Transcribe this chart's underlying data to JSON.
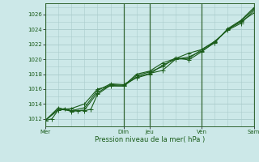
{
  "title": "",
  "xlabel": "Pression niveau de la mer( hPa )",
  "bg_color": "#cce8e8",
  "grid_color_minor": "#aacccc",
  "grid_color_major": "#88bbbb",
  "line_color": "#1a5c1a",
  "marker_color": "#1a5c1a",
  "ylim": [
    1011.0,
    1027.5
  ],
  "yticks": [
    1012,
    1014,
    1016,
    1018,
    1020,
    1022,
    1024,
    1026
  ],
  "x_day_labels": [
    "Mer",
    "",
    "Dim",
    "Jeu",
    "",
    "Ven",
    "",
    "Sam"
  ],
  "x_day_positions": [
    0,
    2,
    3,
    4,
    5,
    6,
    7,
    8
  ],
  "x_major_ticks": [
    0,
    3,
    4,
    6,
    8
  ],
  "x_major_labels": [
    "Mer",
    "Dim",
    "Jeu",
    "Ven",
    "Sam"
  ],
  "line1_x": [
    0,
    0.25,
    0.5,
    0.75,
    1.0,
    1.25,
    1.5,
    1.75,
    2.0,
    2.5,
    3.0,
    3.5,
    4.0,
    4.5,
    5.0,
    5.5,
    6.0,
    6.5,
    7.0,
    7.5,
    8.0
  ],
  "line1_y": [
    1011.8,
    1012.0,
    1013.2,
    1013.4,
    1013.1,
    1013.1,
    1013.1,
    1013.3,
    1015.3,
    1016.5,
    1016.4,
    1017.6,
    1018.1,
    1018.5,
    1020.0,
    1020.1,
    1021.3,
    1022.3,
    1024.0,
    1025.1,
    1026.7
  ],
  "line2_x": [
    0,
    0.5,
    1.0,
    1.5,
    2.0,
    2.5,
    3.0,
    3.5,
    4.0,
    4.5,
    5.0,
    5.5,
    6.0,
    6.5,
    7.0,
    7.5,
    8.0
  ],
  "line2_y": [
    1011.8,
    1013.5,
    1013.0,
    1013.2,
    1015.5,
    1016.6,
    1016.5,
    1017.8,
    1018.3,
    1019.0,
    1020.2,
    1019.9,
    1021.0,
    1022.3,
    1024.0,
    1025.0,
    1026.2
  ],
  "line3_x": [
    0,
    0.5,
    1.0,
    1.5,
    2.0,
    2.5,
    3.0,
    3.5,
    4.0,
    4.5,
    5.0,
    5.5,
    6.0,
    6.5,
    7.0,
    7.5,
    8.0
  ],
  "line3_y": [
    1011.8,
    1013.3,
    1013.1,
    1013.5,
    1015.8,
    1016.7,
    1016.6,
    1017.5,
    1018.0,
    1019.2,
    1020.0,
    1020.3,
    1021.1,
    1022.2,
    1024.1,
    1025.2,
    1026.9
  ],
  "line4_x": [
    0,
    0.5,
    1.0,
    1.5,
    2.0,
    2.5,
    3.0,
    3.5,
    4.0,
    4.5,
    5.0,
    5.5,
    6.0,
    6.5,
    7.0,
    7.5,
    8.0
  ],
  "line4_y": [
    1011.8,
    1013.2,
    1013.4,
    1014.0,
    1016.0,
    1016.4,
    1016.4,
    1018.0,
    1018.4,
    1019.5,
    1020.1,
    1020.8,
    1021.3,
    1022.4,
    1023.9,
    1024.8,
    1026.5
  ]
}
